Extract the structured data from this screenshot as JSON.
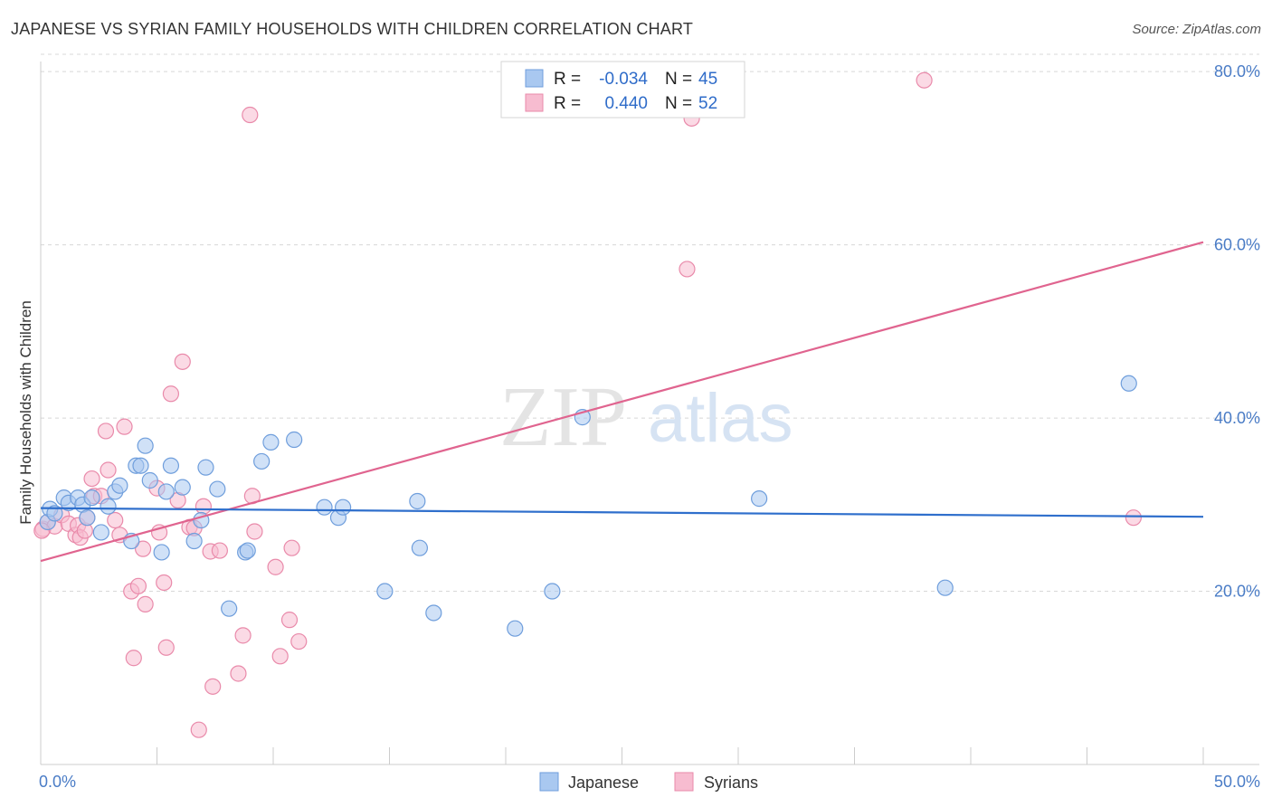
{
  "header": {
    "title": "JAPANESE VS SYRIAN FAMILY HOUSEHOLDS WITH CHILDREN CORRELATION CHART",
    "source": "Source: ZipAtlas.com"
  },
  "watermark": {
    "zip": "ZIP",
    "atlas": "atlas"
  },
  "legend": {
    "rows": [
      {
        "r_label": "R =",
        "r_value": "-0.034",
        "n_label": "N =",
        "n_value": "45"
      },
      {
        "r_label": "R =",
        "r_value": "0.440",
        "n_label": "N =",
        "n_value": "52"
      }
    ],
    "bottom": [
      "Japanese",
      "Syrians"
    ]
  },
  "colors": {
    "japanese_fill": "#a9c8f0",
    "japanese_stroke": "#6f9edc",
    "japanese_line": "#2f6fcc",
    "syrian_fill": "#f7bcd0",
    "syrian_stroke": "#e98aaa",
    "syrian_line": "#e0648f",
    "grid": "#d8d8d8",
    "tick_label": "#4a7cc6"
  },
  "chart_data": {
    "type": "scatter",
    "title": "JAPANESE VS SYRIAN FAMILY HOUSEHOLDS WITH CHILDREN CORRELATION CHART",
    "xlabel": "",
    "ylabel": "Family Households with Children",
    "xlim": [
      0,
      50
    ],
    "ylim": [
      0,
      82
    ],
    "x_tick_labels": [
      "0.0%",
      "50.0%"
    ],
    "y_ticks": [
      20,
      40,
      60,
      80
    ],
    "y_tick_labels": [
      "20.0%",
      "40.0%",
      "60.0%",
      "80.0%"
    ],
    "grid": "horizontal dashed",
    "legend_position": "top-center",
    "series": [
      {
        "name": "Japanese",
        "r": -0.034,
        "n": 45,
        "trend": {
          "x": [
            0,
            50
          ],
          "y": [
            29.6,
            28.6
          ]
        },
        "points": [
          [
            0.3,
            28.0
          ],
          [
            0.4,
            29.5
          ],
          [
            0.6,
            29.0
          ],
          [
            1.0,
            30.8
          ],
          [
            1.2,
            30.2
          ],
          [
            1.6,
            30.8
          ],
          [
            1.8,
            30.0
          ],
          [
            2.0,
            28.5
          ],
          [
            2.2,
            30.8
          ],
          [
            2.6,
            26.8
          ],
          [
            2.9,
            29.8
          ],
          [
            3.2,
            31.5
          ],
          [
            3.4,
            32.2
          ],
          [
            3.9,
            25.8
          ],
          [
            4.1,
            34.5
          ],
          [
            4.3,
            34.5
          ],
          [
            4.5,
            36.8
          ],
          [
            4.7,
            32.8
          ],
          [
            5.2,
            24.5
          ],
          [
            5.4,
            31.5
          ],
          [
            5.6,
            34.5
          ],
          [
            6.1,
            32.0
          ],
          [
            6.6,
            25.8
          ],
          [
            6.9,
            28.2
          ],
          [
            7.1,
            34.3
          ],
          [
            7.6,
            31.8
          ],
          [
            8.1,
            18.0
          ],
          [
            8.8,
            24.5
          ],
          [
            8.9,
            24.7
          ],
          [
            9.5,
            35.0
          ],
          [
            9.9,
            37.2
          ],
          [
            10.9,
            37.5
          ],
          [
            12.2,
            29.7
          ],
          [
            12.8,
            28.5
          ],
          [
            13.0,
            29.7
          ],
          [
            14.8,
            20.0
          ],
          [
            16.2,
            30.4
          ],
          [
            16.3,
            25.0
          ],
          [
            16.9,
            17.5
          ],
          [
            20.4,
            15.7
          ],
          [
            22.0,
            20.0
          ],
          [
            23.3,
            40.1
          ],
          [
            30.9,
            30.7
          ],
          [
            38.9,
            20.4
          ],
          [
            46.8,
            44.0
          ]
        ]
      },
      {
        "name": "Syrians",
        "r": 0.44,
        "n": 52,
        "trend": {
          "x": [
            0,
            50
          ],
          "y": [
            23.5,
            60.3
          ]
        },
        "points": [
          [
            0.1,
            27.2
          ],
          [
            0.3,
            28.0
          ],
          [
            0.6,
            27.5
          ],
          [
            0.9,
            28.8
          ],
          [
            1.2,
            27.8
          ],
          [
            1.5,
            26.5
          ],
          [
            1.6,
            27.6
          ],
          [
            1.7,
            26.2
          ],
          [
            1.9,
            27.0
          ],
          [
            2.0,
            28.5
          ],
          [
            2.2,
            33.0
          ],
          [
            2.3,
            31.0
          ],
          [
            2.6,
            31.0
          ],
          [
            2.8,
            38.5
          ],
          [
            2.9,
            34.0
          ],
          [
            3.2,
            28.2
          ],
          [
            3.4,
            26.5
          ],
          [
            3.6,
            39.0
          ],
          [
            3.9,
            20.0
          ],
          [
            4.0,
            12.3
          ],
          [
            4.2,
            20.6
          ],
          [
            4.4,
            24.9
          ],
          [
            4.5,
            18.5
          ],
          [
            5.0,
            31.9
          ],
          [
            5.1,
            26.8
          ],
          [
            5.3,
            21.0
          ],
          [
            5.4,
            13.5
          ],
          [
            5.6,
            42.8
          ],
          [
            5.9,
            30.5
          ],
          [
            6.1,
            46.5
          ],
          [
            6.4,
            27.4
          ],
          [
            6.6,
            27.3
          ],
          [
            6.8,
            4.0
          ],
          [
            7.0,
            29.8
          ],
          [
            7.3,
            24.6
          ],
          [
            7.4,
            9.0
          ],
          [
            7.7,
            24.7
          ],
          [
            8.5,
            10.5
          ],
          [
            8.7,
            14.9
          ],
          [
            9.0,
            75.0
          ],
          [
            9.1,
            31.0
          ],
          [
            9.2,
            26.9
          ],
          [
            10.1,
            22.8
          ],
          [
            10.3,
            12.5
          ],
          [
            10.7,
            16.7
          ],
          [
            10.8,
            25.0
          ],
          [
            11.1,
            14.2
          ],
          [
            27.8,
            57.2
          ],
          [
            28.0,
            74.6
          ],
          [
            38.0,
            79.0
          ],
          [
            47.0,
            28.5
          ],
          [
            0.05,
            27.0
          ]
        ]
      }
    ]
  }
}
